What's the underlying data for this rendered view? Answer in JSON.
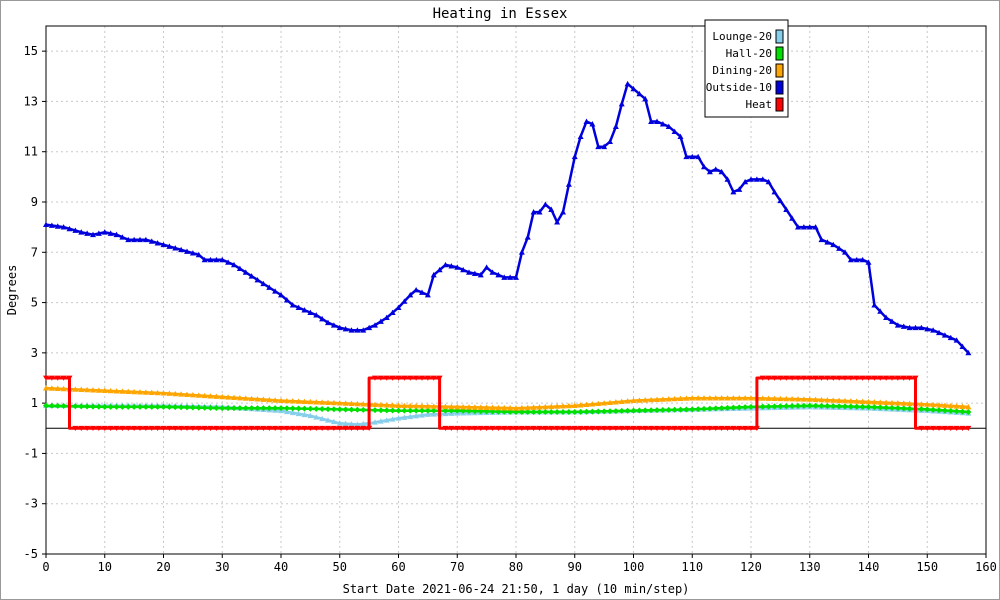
{
  "chart_data": {
    "type": "line",
    "title": "Heating in Essex",
    "xlabel": "Start Date 2021-06-24 21:50, 1 day (10 min/step)",
    "ylabel": "Degrees",
    "xlim": [
      0,
      160
    ],
    "ylim": [
      -5,
      16
    ],
    "xticks": [
      0,
      10,
      20,
      30,
      40,
      50,
      60,
      70,
      80,
      90,
      100,
      110,
      120,
      130,
      140,
      150,
      160
    ],
    "yticks": [
      -5,
      -3,
      -1,
      1,
      3,
      5,
      7,
      9,
      11,
      13,
      15
    ],
    "grid": true,
    "legend_position": "top-right",
    "series": [
      {
        "name": "Lounge-20",
        "color": "#87ceeb",
        "marker": "triangle",
        "points": [
          [
            0,
            0.9
          ],
          [
            10,
            0.9
          ],
          [
            20,
            0.9
          ],
          [
            30,
            0.85
          ],
          [
            40,
            0.7
          ],
          [
            45,
            0.5
          ],
          [
            50,
            0.2
          ],
          [
            53,
            0.15
          ],
          [
            55,
            0.2
          ],
          [
            60,
            0.4
          ],
          [
            65,
            0.55
          ],
          [
            70,
            0.6
          ],
          [
            80,
            0.65
          ],
          [
            90,
            0.65
          ],
          [
            100,
            0.7
          ],
          [
            110,
            0.75
          ],
          [
            120,
            0.8
          ],
          [
            130,
            0.85
          ],
          [
            140,
            0.8
          ],
          [
            150,
            0.7
          ],
          [
            157,
            0.6
          ]
        ]
      },
      {
        "name": "Hall-20",
        "color": "#00e000",
        "marker": "diamond",
        "points": [
          [
            0,
            0.9
          ],
          [
            10,
            0.85
          ],
          [
            20,
            0.85
          ],
          [
            30,
            0.8
          ],
          [
            40,
            0.8
          ],
          [
            50,
            0.75
          ],
          [
            60,
            0.7
          ],
          [
            70,
            0.7
          ],
          [
            80,
            0.65
          ],
          [
            90,
            0.65
          ],
          [
            100,
            0.7
          ],
          [
            110,
            0.75
          ],
          [
            120,
            0.85
          ],
          [
            130,
            0.9
          ],
          [
            140,
            0.85
          ],
          [
            150,
            0.75
          ],
          [
            157,
            0.65
          ]
        ]
      },
      {
        "name": "Dining-20",
        "color": "#ffa500",
        "marker": "triangle",
        "points": [
          [
            0,
            1.6
          ],
          [
            10,
            1.5
          ],
          [
            20,
            1.4
          ],
          [
            30,
            1.25
          ],
          [
            40,
            1.1
          ],
          [
            50,
            1.0
          ],
          [
            60,
            0.9
          ],
          [
            70,
            0.85
          ],
          [
            80,
            0.8
          ],
          [
            90,
            0.9
          ],
          [
            100,
            1.1
          ],
          [
            110,
            1.2
          ],
          [
            120,
            1.2
          ],
          [
            130,
            1.15
          ],
          [
            140,
            1.05
          ],
          [
            150,
            0.95
          ],
          [
            157,
            0.85
          ]
        ]
      },
      {
        "name": "Outside-10",
        "color": "#0000dd",
        "marker": "triangle",
        "points": [
          [
            0,
            8.1
          ],
          [
            3,
            8.0
          ],
          [
            6,
            7.8
          ],
          [
            8,
            7.7
          ],
          [
            10,
            7.8
          ],
          [
            12,
            7.7
          ],
          [
            14,
            7.5
          ],
          [
            17,
            7.5
          ],
          [
            20,
            7.3
          ],
          [
            23,
            7.1
          ],
          [
            26,
            6.9
          ],
          [
            27,
            6.7
          ],
          [
            30,
            6.7
          ],
          [
            32,
            6.5
          ],
          [
            34,
            6.2
          ],
          [
            36,
            5.9
          ],
          [
            38,
            5.6
          ],
          [
            40,
            5.3
          ],
          [
            42,
            4.9
          ],
          [
            44,
            4.7
          ],
          [
            46,
            4.5
          ],
          [
            48,
            4.2
          ],
          [
            50,
            4.0
          ],
          [
            52,
            3.9
          ],
          [
            54,
            3.9
          ],
          [
            56,
            4.1
          ],
          [
            58,
            4.4
          ],
          [
            60,
            4.8
          ],
          [
            62,
            5.3
          ],
          [
            63,
            5.5
          ],
          [
            64,
            5.4
          ],
          [
            65,
            5.3
          ],
          [
            66,
            6.1
          ],
          [
            68,
            6.5
          ],
          [
            70,
            6.4
          ],
          [
            72,
            6.2
          ],
          [
            74,
            6.1
          ],
          [
            75,
            6.4
          ],
          [
            76,
            6.2
          ],
          [
            78,
            6.0
          ],
          [
            80,
            6.0
          ],
          [
            81,
            7.0
          ],
          [
            82,
            7.6
          ],
          [
            83,
            8.6
          ],
          [
            84,
            8.6
          ],
          [
            85,
            8.9
          ],
          [
            86,
            8.7
          ],
          [
            87,
            8.2
          ],
          [
            88,
            8.6
          ],
          [
            89,
            9.7
          ],
          [
            90,
            10.8
          ],
          [
            91,
            11.6
          ],
          [
            92,
            12.2
          ],
          [
            93,
            12.1
          ],
          [
            94,
            11.2
          ],
          [
            95,
            11.2
          ],
          [
            96,
            11.4
          ],
          [
            97,
            12.0
          ],
          [
            98,
            12.9
          ],
          [
            99,
            13.7
          ],
          [
            100,
            13.5
          ],
          [
            101,
            13.3
          ],
          [
            102,
            13.1
          ],
          [
            103,
            12.2
          ],
          [
            104,
            12.2
          ],
          [
            106,
            12.0
          ],
          [
            108,
            11.6
          ],
          [
            109,
            10.8
          ],
          [
            110,
            10.8
          ],
          [
            111,
            10.8
          ],
          [
            112,
            10.4
          ],
          [
            113,
            10.2
          ],
          [
            114,
            10.3
          ],
          [
            115,
            10.2
          ],
          [
            116,
            9.9
          ],
          [
            117,
            9.4
          ],
          [
            118,
            9.5
          ],
          [
            119,
            9.8
          ],
          [
            120,
            9.9
          ],
          [
            122,
            9.9
          ],
          [
            123,
            9.8
          ],
          [
            124,
            9.4
          ],
          [
            126,
            8.7
          ],
          [
            128,
            8.0
          ],
          [
            130,
            8.0
          ],
          [
            131,
            8.0
          ],
          [
            132,
            7.5
          ],
          [
            134,
            7.3
          ],
          [
            136,
            7.0
          ],
          [
            137,
            6.7
          ],
          [
            139,
            6.7
          ],
          [
            140,
            6.6
          ],
          [
            141,
            4.9
          ],
          [
            143,
            4.4
          ],
          [
            145,
            4.1
          ],
          [
            147,
            4.0
          ],
          [
            149,
            4.0
          ],
          [
            151,
            3.9
          ],
          [
            153,
            3.7
          ],
          [
            155,
            3.5
          ],
          [
            157,
            3.0
          ]
        ]
      },
      {
        "name": "Heat",
        "color": "#ff0000",
        "marker": "triangle-down",
        "points": [
          [
            0,
            2
          ],
          [
            4,
            2
          ],
          [
            4,
            0
          ],
          [
            55,
            0
          ],
          [
            55,
            2
          ],
          [
            67,
            2
          ],
          [
            67,
            0
          ],
          [
            121,
            0
          ],
          [
            121,
            2
          ],
          [
            148,
            2
          ],
          [
            148,
            0
          ],
          [
            157,
            0
          ]
        ]
      }
    ]
  }
}
